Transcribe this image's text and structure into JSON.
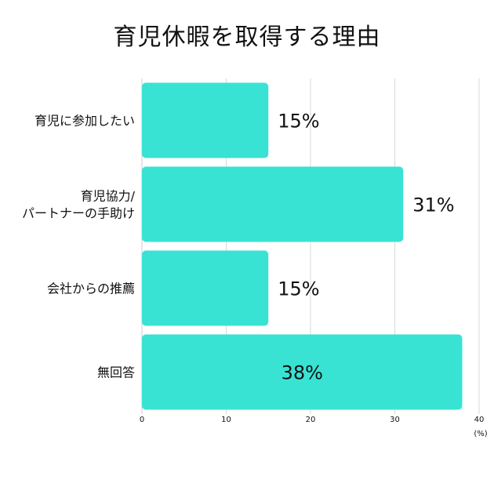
{
  "chart_data": {
    "type": "bar",
    "orientation": "horizontal",
    "title": "育児休暇を取得する理由",
    "categories": [
      [
        "育児に参加したい"
      ],
      [
        "育児協力/",
        "パートナーの手助け"
      ],
      [
        "会社からの推薦"
      ],
      [
        "無回答"
      ]
    ],
    "values": [
      15,
      31,
      15,
      38
    ],
    "data_labels": [
      "15%",
      "31%",
      "15%",
      "38%"
    ],
    "xlim": [
      0,
      40
    ],
    "xticks": [
      "0",
      "10",
      "20",
      "30",
      "40"
    ],
    "xtick_values": [
      0,
      10,
      20,
      30,
      40
    ],
    "unit_label": "(%)",
    "grid": true,
    "colors": {
      "bar": "#38e3d4",
      "grid": "#d9d9d9",
      "axis": "#cccccc",
      "text": "#111111"
    }
  }
}
